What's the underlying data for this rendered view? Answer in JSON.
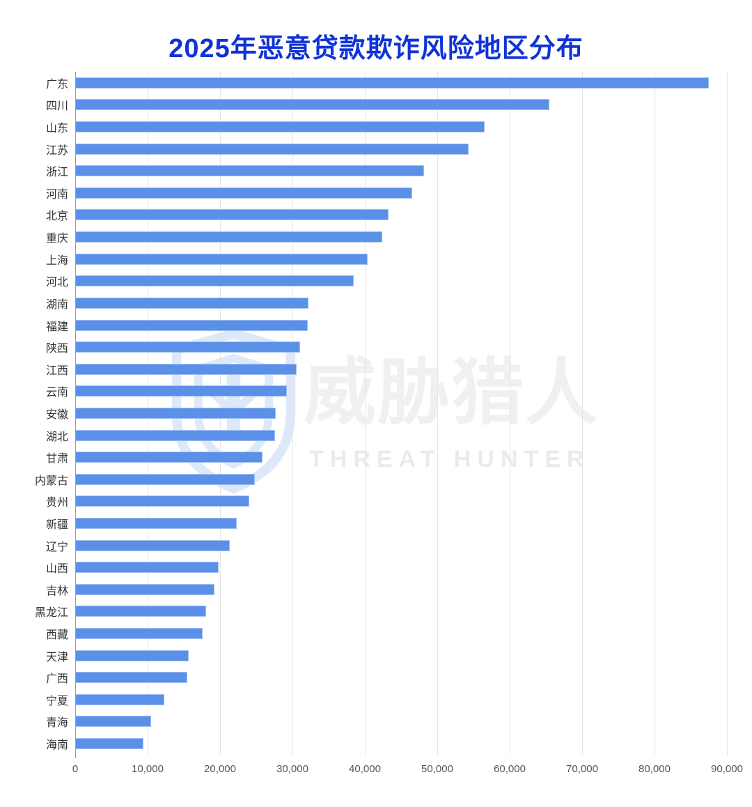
{
  "page": {
    "background": "#ffffff"
  },
  "chart_data": {
    "type": "bar",
    "orientation": "horizontal",
    "title": "2025年恶意贷款欺诈风险地区分布",
    "title_color": "#1133d6",
    "bar_color": "#5b90e8",
    "grid": "vertical-only",
    "legend_position": "none",
    "xlim": [
      0,
      90000
    ],
    "x_ticks": [
      0,
      10000,
      20000,
      30000,
      40000,
      50000,
      60000,
      70000,
      80000,
      90000
    ],
    "x_tick_labels": [
      "0",
      "10,000",
      "20,000",
      "30,000",
      "40,000",
      "50,000",
      "60,000",
      "70,000",
      "80,000",
      "90,000"
    ],
    "categories": [
      "广东",
      "四川",
      "山东",
      "江苏",
      "浙江",
      "河南",
      "北京",
      "重庆",
      "上海",
      "河北",
      "湖南",
      "福建",
      "陕西",
      "江西",
      "云南",
      "安徽",
      "湖北",
      "甘肃",
      "内蒙古",
      "贵州",
      "新疆",
      "辽宁",
      "山西",
      "吉林",
      "黑龙江",
      "西藏",
      "天津",
      "广西",
      "宁夏",
      "青海",
      "海南"
    ],
    "values": [
      87500,
      65500,
      56500,
      54300,
      48200,
      46500,
      43300,
      42400,
      40400,
      38500,
      32200,
      32100,
      31100,
      30600,
      29200,
      27700,
      27600,
      25900,
      24800,
      24000,
      22300,
      21300,
      19800,
      19200,
      18100,
      17600,
      15700,
      15500,
      12300,
      10500,
      9400
    ]
  },
  "watermark": {
    "logo": "shield-icon",
    "cn": "威胁猎人",
    "en": "THREAT HUNTER",
    "logo_color": "#dbe7f9",
    "text_color": "#f0f0f0"
  }
}
